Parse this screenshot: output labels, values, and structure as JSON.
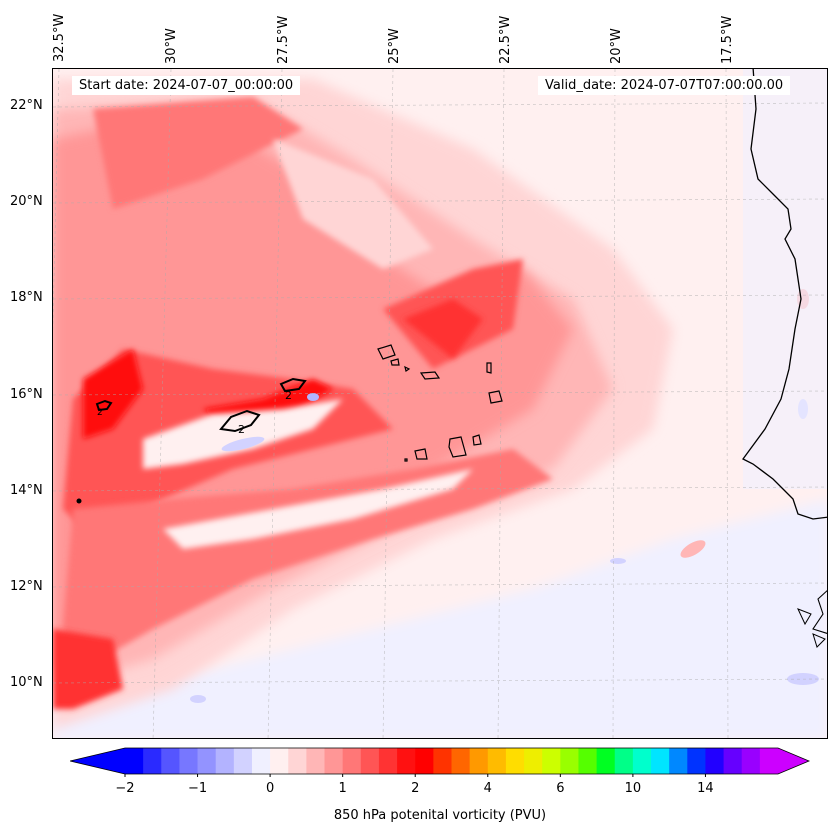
{
  "header": {
    "start_date": "Start date: 2024-07-07_00:00:00",
    "valid_date": "Valid_date: 2024-07-07T07:00:00.00"
  },
  "axes": {
    "longitude_labels": [
      "32.5°W",
      "30°W",
      "27.5°W",
      "25°W",
      "22.5°W",
      "20°W",
      "17.5°W"
    ],
    "latitude_labels": [
      "22°N",
      "20°N",
      "18°N",
      "16°N",
      "14°N",
      "12°N",
      "10°N"
    ]
  },
  "contour_labels": [
    "2",
    "2",
    "2"
  ],
  "colorbar": {
    "label": "850 hPa potenital vorticity (PVU)",
    "tick_labels": [
      "−2",
      "−1",
      "0",
      "1",
      "2",
      "4",
      "6",
      "10",
      "14"
    ],
    "colors": [
      "#0000ff",
      "#2a2aff",
      "#5555ff",
      "#7777ff",
      "#9393ff",
      "#b3b3ff",
      "#d2d2ff",
      "#f0f0ff",
      "#fff0f0",
      "#ffd5d5",
      "#ffb6b6",
      "#ff9696",
      "#ff7777",
      "#ff5555",
      "#ff3333",
      "#ff1111",
      "#ff0000",
      "#ff3300",
      "#ff6600",
      "#ff9900",
      "#ffbb00",
      "#ffdd00",
      "#eeee00",
      "#ccff00",
      "#99ff00",
      "#55ff00",
      "#00ff22",
      "#00ff88",
      "#00ffcc",
      "#00e5ff",
      "#0088ff",
      "#0033ff",
      "#2200ff",
      "#6600ff",
      "#9900ff",
      "#cc00ff"
    ],
    "extend_low_color": "#0000ff",
    "extend_high_color": "#cc00ff"
  }
}
